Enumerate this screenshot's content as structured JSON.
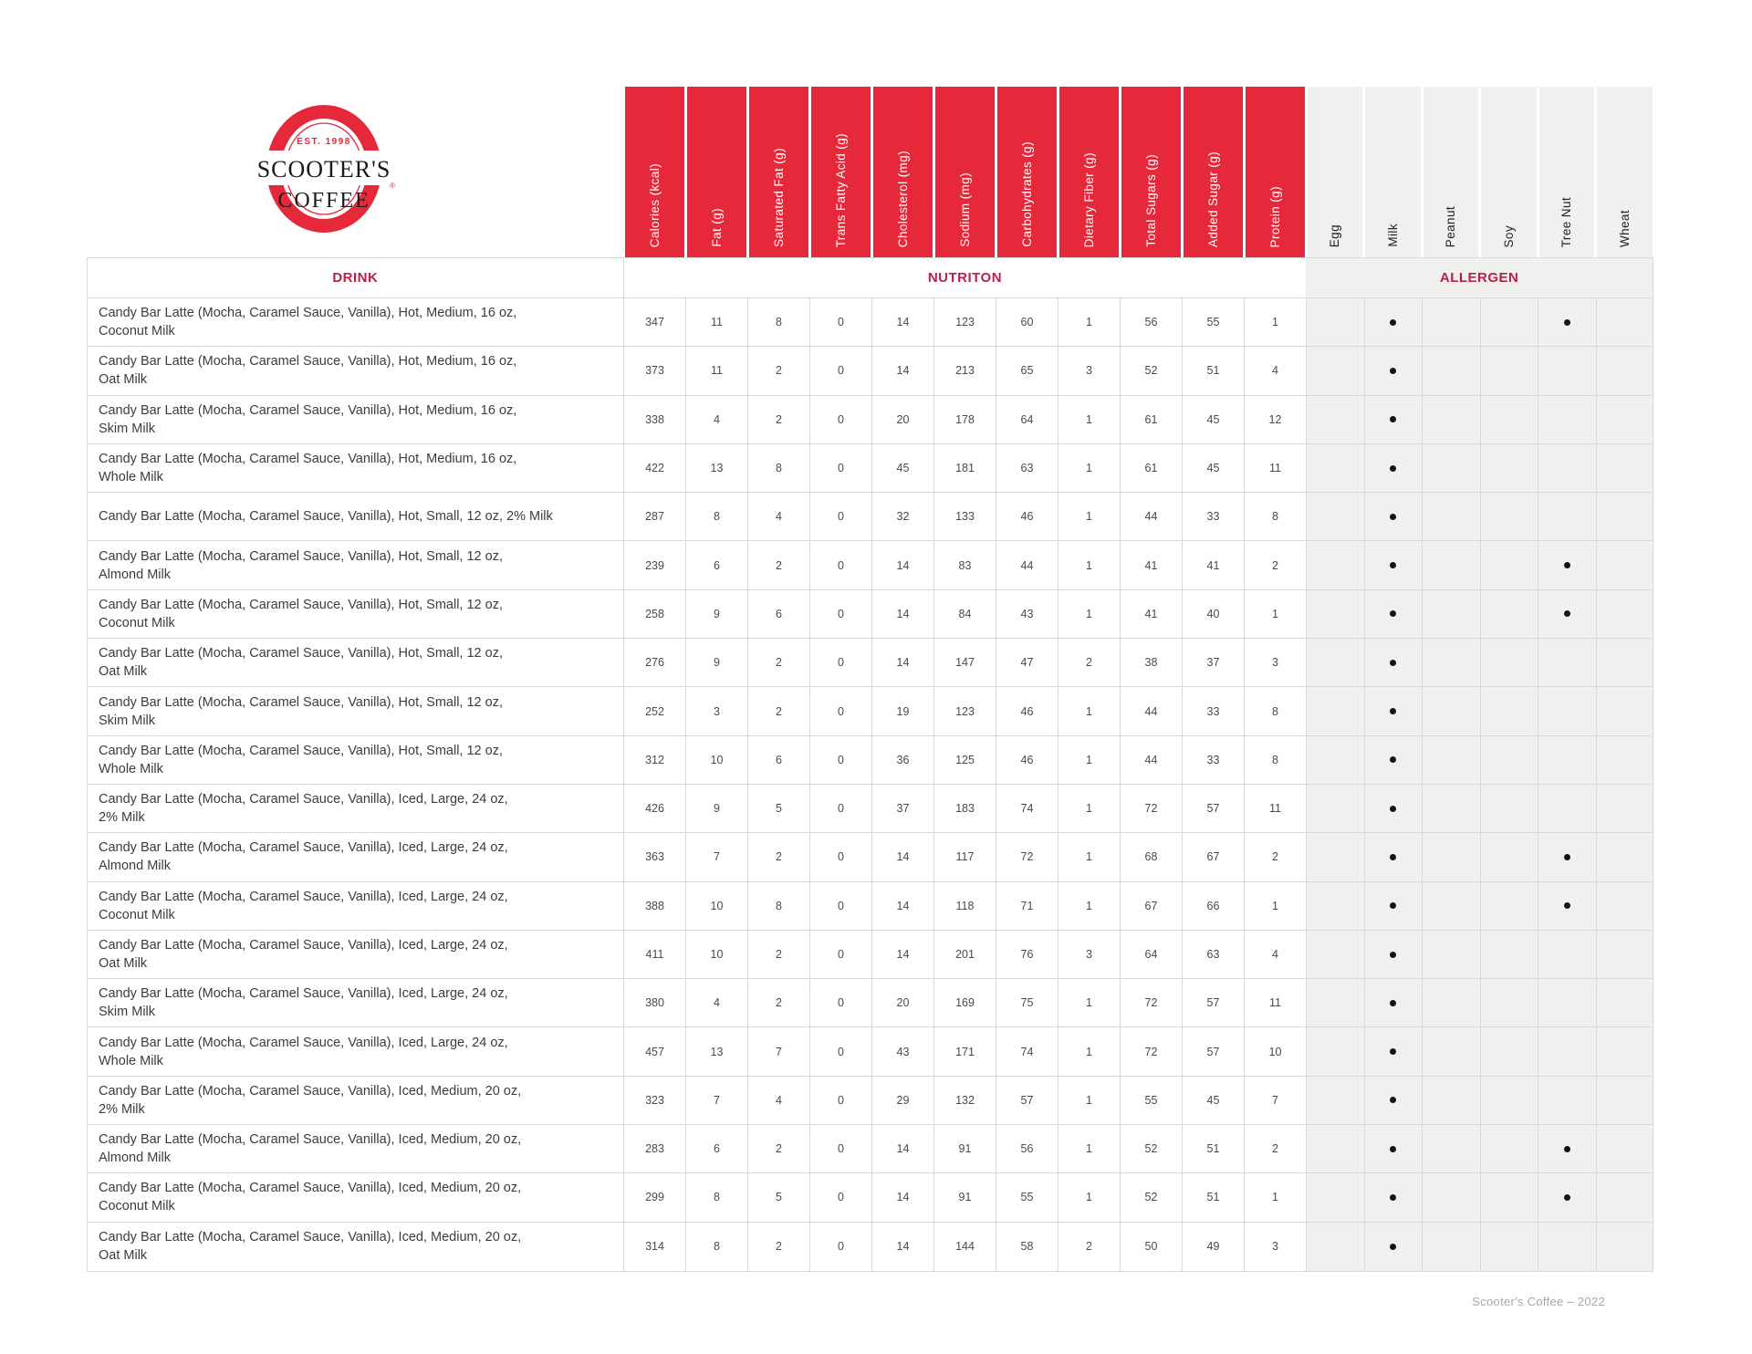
{
  "brand": {
    "est": "EST. 1998",
    "name_top": "SCOOTER'S",
    "name_bottom": "COFFEE",
    "reg": "®"
  },
  "section_headers": {
    "drink": "DRINK",
    "nutrition": "NUTRITON",
    "allergen": "ALLERGEN"
  },
  "nutrition_columns": [
    "Calories (kcal)",
    "Fat (g)",
    "Saturated Fat (g)",
    "Trans Fatty Acid (g)",
    "Cholesterol (mg)",
    "Sodium (mg)",
    "Carbohydrates (g)",
    "Dietary Fiber (g)",
    "Total Sugars (g)",
    "Added Sugar (g)",
    "Protein (g)"
  ],
  "allergen_columns": [
    "Egg",
    "Milk",
    "Peanut",
    "Soy",
    "Tree Nut",
    "Wheat"
  ],
  "rows": [
    {
      "name_lines": [
        "Candy Bar Latte (Mocha, Caramel Sauce, Vanilla), Hot, Medium, 16 oz,",
        "Coconut Milk"
      ],
      "values": [
        347,
        11,
        8,
        0,
        14,
        123,
        60,
        1,
        56,
        55,
        1
      ],
      "allergens": [
        "Milk",
        "Tree Nut"
      ]
    },
    {
      "name_lines": [
        "Candy Bar Latte (Mocha, Caramel Sauce, Vanilla), Hot, Medium, 16 oz,",
        "Oat Milk"
      ],
      "values": [
        373,
        11,
        2,
        0,
        14,
        213,
        65,
        3,
        52,
        51,
        4
      ],
      "allergens": [
        "Milk"
      ]
    },
    {
      "name_lines": [
        "Candy Bar Latte (Mocha, Caramel Sauce, Vanilla), Hot, Medium, 16 oz,",
        "Skim Milk"
      ],
      "values": [
        338,
        4,
        2,
        0,
        20,
        178,
        64,
        1,
        61,
        45,
        12
      ],
      "allergens": [
        "Milk"
      ]
    },
    {
      "name_lines": [
        "Candy Bar Latte (Mocha, Caramel Sauce, Vanilla), Hot, Medium, 16 oz,",
        "Whole Milk"
      ],
      "values": [
        422,
        13,
        8,
        0,
        45,
        181,
        63,
        1,
        61,
        45,
        11
      ],
      "allergens": [
        "Milk"
      ]
    },
    {
      "name_lines": [
        "Candy Bar Latte (Mocha, Caramel Sauce, Vanilla), Hot, Small, 12 oz, 2% Milk"
      ],
      "values": [
        287,
        8,
        4,
        0,
        32,
        133,
        46,
        1,
        44,
        33,
        8
      ],
      "allergens": [
        "Milk"
      ]
    },
    {
      "name_lines": [
        "Candy Bar Latte (Mocha, Caramel Sauce, Vanilla), Hot, Small, 12 oz,",
        "Almond Milk"
      ],
      "values": [
        239,
        6,
        2,
        0,
        14,
        83,
        44,
        1,
        41,
        41,
        2
      ],
      "allergens": [
        "Milk",
        "Tree Nut"
      ]
    },
    {
      "name_lines": [
        "Candy Bar Latte (Mocha, Caramel Sauce, Vanilla), Hot, Small, 12 oz,",
        "Coconut Milk"
      ],
      "values": [
        258,
        9,
        6,
        0,
        14,
        84,
        43,
        1,
        41,
        40,
        1
      ],
      "allergens": [
        "Milk",
        "Tree Nut"
      ]
    },
    {
      "name_lines": [
        "Candy Bar Latte (Mocha, Caramel Sauce, Vanilla), Hot, Small, 12 oz,",
        "Oat Milk"
      ],
      "values": [
        276,
        9,
        2,
        0,
        14,
        147,
        47,
        2,
        38,
        37,
        3
      ],
      "allergens": [
        "Milk"
      ]
    },
    {
      "name_lines": [
        "Candy Bar Latte (Mocha, Caramel Sauce, Vanilla), Hot, Small, 12 oz,",
        "Skim Milk"
      ],
      "values": [
        252,
        3,
        2,
        0,
        19,
        123,
        46,
        1,
        44,
        33,
        8
      ],
      "allergens": [
        "Milk"
      ]
    },
    {
      "name_lines": [
        "Candy Bar Latte (Mocha, Caramel Sauce, Vanilla), Hot, Small, 12 oz,",
        "Whole Milk"
      ],
      "values": [
        312,
        10,
        6,
        0,
        36,
        125,
        46,
        1,
        44,
        33,
        8
      ],
      "allergens": [
        "Milk"
      ]
    },
    {
      "name_lines": [
        "Candy Bar Latte (Mocha, Caramel Sauce, Vanilla), Iced, Large, 24 oz,",
        "2% Milk"
      ],
      "values": [
        426,
        9,
        5,
        0,
        37,
        183,
        74,
        1,
        72,
        57,
        11
      ],
      "allergens": [
        "Milk"
      ]
    },
    {
      "name_lines": [
        "Candy Bar Latte (Mocha, Caramel Sauce, Vanilla), Iced, Large, 24 oz,",
        "Almond Milk"
      ],
      "values": [
        363,
        7,
        2,
        0,
        14,
        117,
        72,
        1,
        68,
        67,
        2
      ],
      "allergens": [
        "Milk",
        "Tree Nut"
      ]
    },
    {
      "name_lines": [
        "Candy Bar Latte (Mocha, Caramel Sauce, Vanilla), Iced, Large, 24 oz,",
        "Coconut Milk"
      ],
      "values": [
        388,
        10,
        8,
        0,
        14,
        118,
        71,
        1,
        67,
        66,
        1
      ],
      "allergens": [
        "Milk",
        "Tree Nut"
      ]
    },
    {
      "name_lines": [
        "Candy Bar Latte (Mocha, Caramel Sauce, Vanilla), Iced, Large, 24 oz,",
        "Oat Milk"
      ],
      "values": [
        411,
        10,
        2,
        0,
        14,
        201,
        76,
        3,
        64,
        63,
        4
      ],
      "allergens": [
        "Milk"
      ]
    },
    {
      "name_lines": [
        "Candy Bar Latte (Mocha, Caramel Sauce, Vanilla), Iced, Large, 24 oz,",
        "Skim Milk"
      ],
      "values": [
        380,
        4,
        2,
        0,
        20,
        169,
        75,
        1,
        72,
        57,
        11
      ],
      "allergens": [
        "Milk"
      ]
    },
    {
      "name_lines": [
        "Candy Bar Latte (Mocha, Caramel Sauce, Vanilla), Iced, Large, 24 oz,",
        "Whole Milk"
      ],
      "values": [
        457,
        13,
        7,
        0,
        43,
        171,
        74,
        1,
        72,
        57,
        10
      ],
      "allergens": [
        "Milk"
      ]
    },
    {
      "name_lines": [
        "Candy Bar Latte (Mocha, Caramel Sauce, Vanilla), Iced, Medium, 20 oz,",
        "2% Milk"
      ],
      "values": [
        323,
        7,
        4,
        0,
        29,
        132,
        57,
        1,
        55,
        45,
        7
      ],
      "allergens": [
        "Milk"
      ]
    },
    {
      "name_lines": [
        "Candy Bar Latte (Mocha, Caramel Sauce, Vanilla), Iced, Medium, 20 oz,",
        "Almond Milk"
      ],
      "values": [
        283,
        6,
        2,
        0,
        14,
        91,
        56,
        1,
        52,
        51,
        2
      ],
      "allergens": [
        "Milk",
        "Tree Nut"
      ]
    },
    {
      "name_lines": [
        "Candy Bar Latte (Mocha, Caramel Sauce, Vanilla), Iced, Medium, 20 oz,",
        "Coconut Milk"
      ],
      "values": [
        299,
        8,
        5,
        0,
        14,
        91,
        55,
        1,
        52,
        51,
        1
      ],
      "allergens": [
        "Milk",
        "Tree Nut"
      ]
    },
    {
      "name_lines": [
        "Candy Bar Latte (Mocha, Caramel Sauce, Vanilla), Iced, Medium, 20 oz,",
        "Oat Milk"
      ],
      "values": [
        314,
        8,
        2,
        0,
        14,
        144,
        58,
        2,
        50,
        49,
        3
      ],
      "allergens": [
        "Milk"
      ]
    }
  ],
  "footer": "Scooter's Coffee – 2022",
  "colors": {
    "brand_red": "#e6293a",
    "label_red": "#b92045",
    "allergen_bg": "#f0f0ef",
    "grid_line": "#d9d9d9",
    "name_text": "#3c3c3c",
    "value_text": "#4a4a4a",
    "footer_text": "#a8a8a8",
    "logo_text": "#1a1a1a",
    "dot": "#151515"
  }
}
